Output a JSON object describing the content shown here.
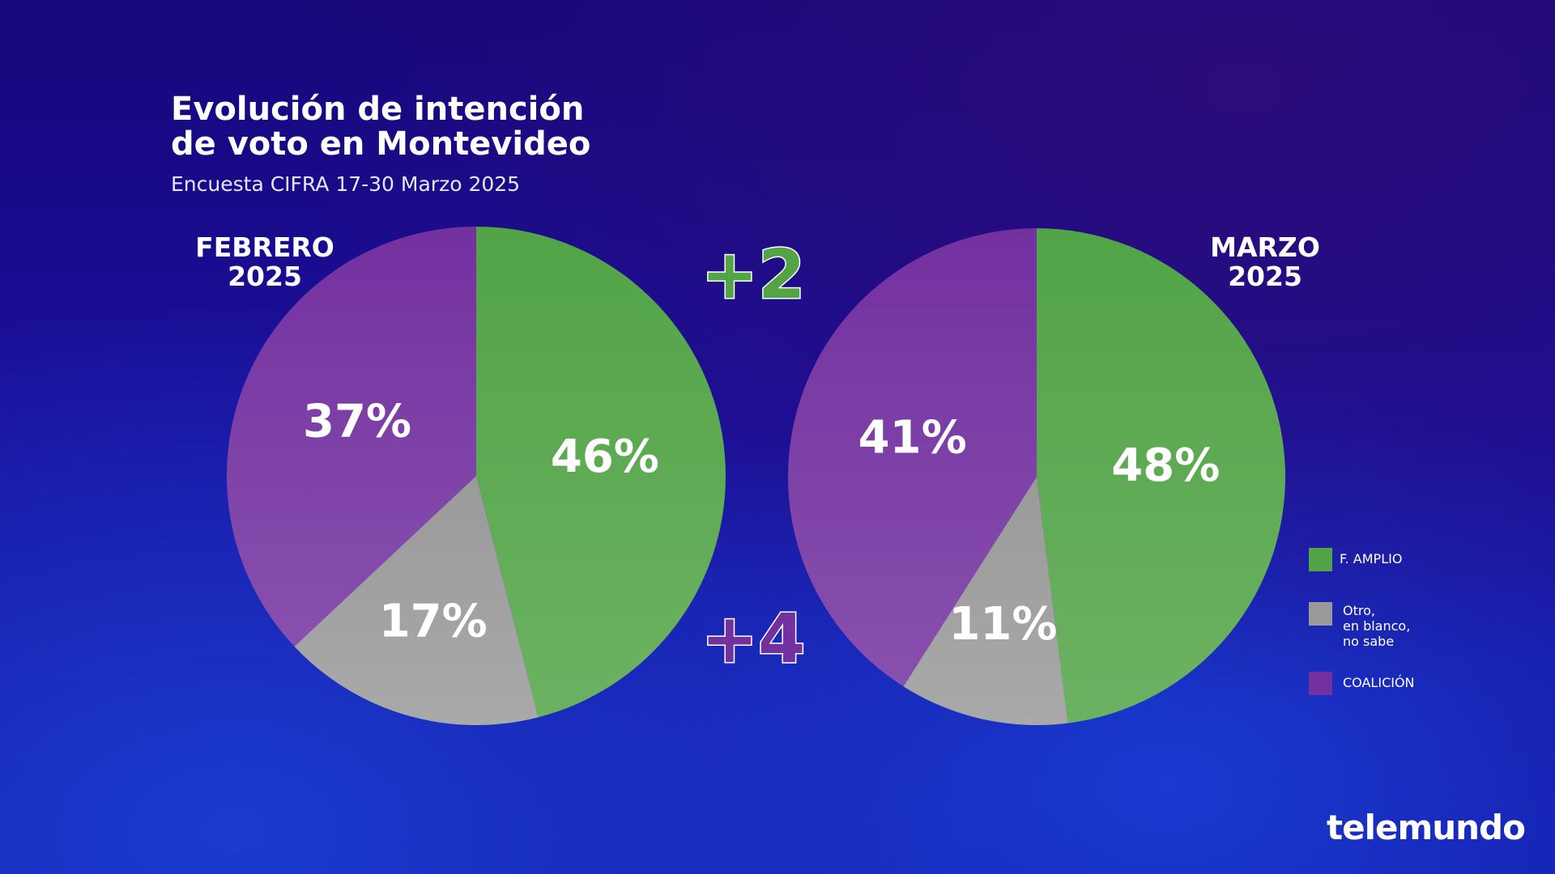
{
  "title": "Evolución de intención\nde voto en Montevideo",
  "subtitle": "Encuesta CIFRA 17-30 Marzo 2025",
  "annotations": [
    "+2",
    "+4"
  ],
  "brand": "telemundo",
  "chart_data": [
    {
      "type": "pie",
      "title": "FEBRERO\n2025",
      "categories": [
        "F. AMPLIO",
        "Otro,\nen blanco,\nno sabe",
        "COALICIÓN"
      ],
      "values": [
        46,
        17,
        37
      ],
      "value_labels": [
        "46%",
        "17%",
        "37%"
      ],
      "colors": [
        "#52a447",
        "#9a9a9a",
        "#7331a0"
      ]
    },
    {
      "type": "pie",
      "title": "MARZO\n2025",
      "categories": [
        "F. AMPLIO",
        "Otro,\nen blanco,\nno sabe",
        "COALICIÓN"
      ],
      "values": [
        48,
        11,
        41
      ],
      "value_labels": [
        "48%",
        "11%",
        "41%"
      ],
      "colors": [
        "#52a447",
        "#9a9a9a",
        "#7331a0"
      ]
    }
  ]
}
